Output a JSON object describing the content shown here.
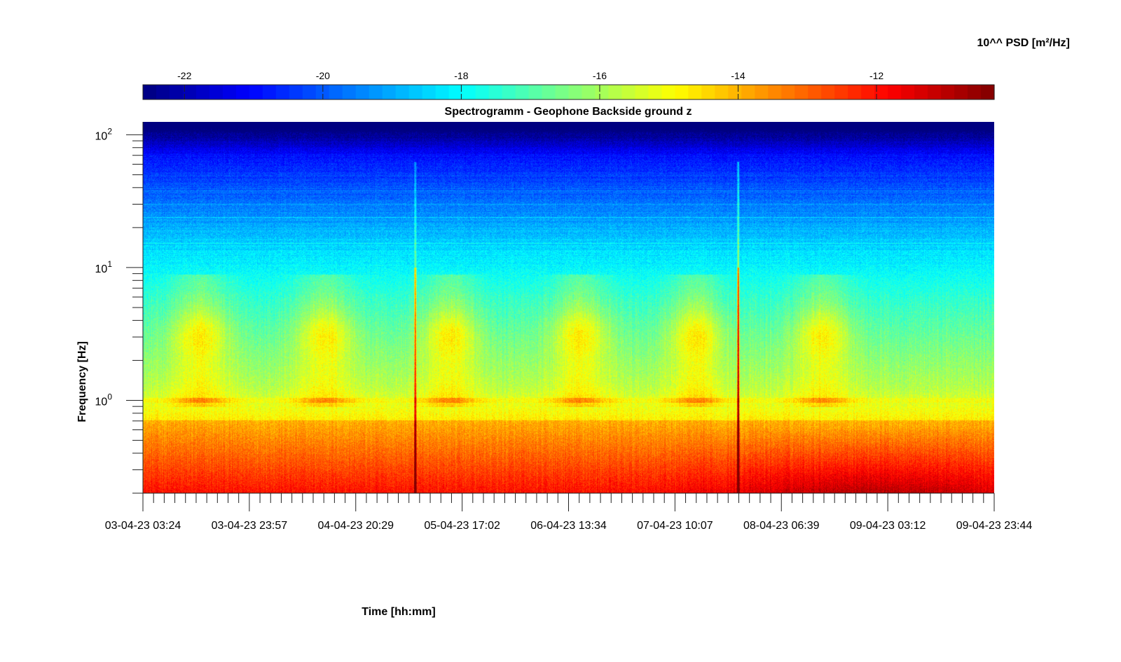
{
  "chart_data": {
    "type": "heatmap",
    "title": "Spectrogramm - Geophone Backside ground z",
    "xlabel": "Time [hh:mm]",
    "ylabel": "Frequency [Hz]",
    "x_ticks": [
      "03-04-23 03:24",
      "03-04-23 23:57",
      "04-04-23 20:29",
      "05-04-23 17:02",
      "06-04-23 13:34",
      "07-04-23 10:07",
      "08-04-23 06:39",
      "09-04-23 03:12",
      "09-04-23 23:44"
    ],
    "xlim": [
      "03-04-23 03:24",
      "09-04-23 23:44"
    ],
    "y_scale": "log",
    "ylim": [
      0.2,
      125
    ],
    "y_ticks": [
      {
        "base": "10",
        "exp": "0",
        "value": 1
      },
      {
        "base": "10",
        "exp": "1",
        "value": 10
      },
      {
        "base": "10",
        "exp": "2",
        "value": 100
      }
    ],
    "colorbar": {
      "label": "10^^ PSD [m²/Hz]",
      "colormap": "jet",
      "range": [
        -22.6,
        -10.3
      ],
      "ticks": [
        "-22",
        "-20",
        "-18",
        "-16",
        "-14",
        "-12"
      ],
      "location": "top"
    },
    "features": {
      "daily_activity_bands": {
        "freq_range_hz": [
          2.5,
          4
        ],
        "count": 6
      },
      "narrow_band_hz": 1.0,
      "transient_events": [
        "05-04-23 09:00",
        "07-04-23 17:00"
      ],
      "max_region": {
        "time": "08-04-23 03:00",
        "freq_hz": 0.22,
        "psd_log10": -11
      }
    }
  }
}
